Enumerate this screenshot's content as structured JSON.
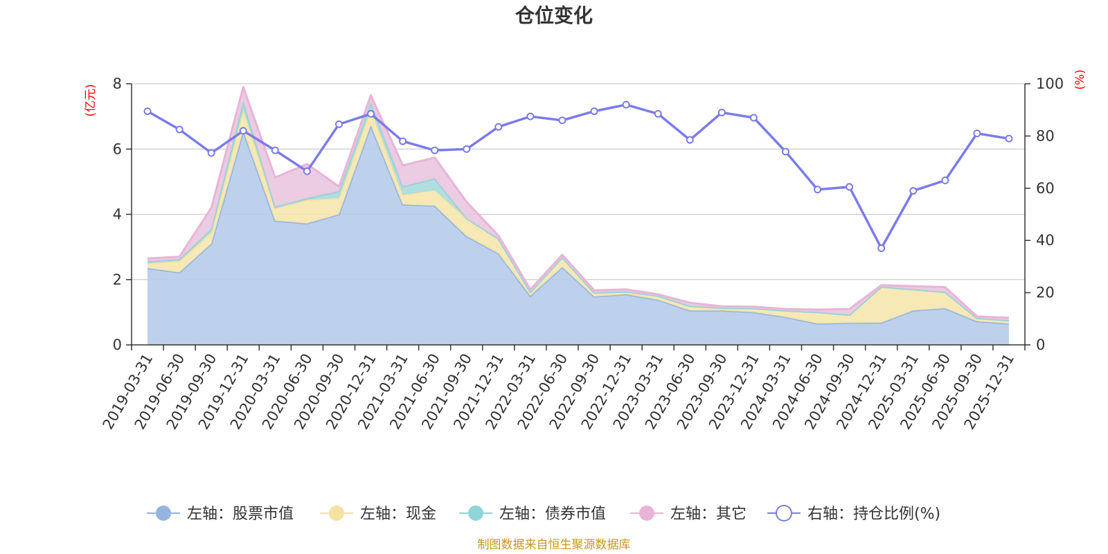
{
  "chart_data": {
    "type": "area",
    "title": "仓位变化",
    "left_axis": {
      "unit": "(亿元)",
      "ylim": [
        0,
        8
      ],
      "ticks": [
        "0",
        "2",
        "4",
        "6",
        "8"
      ]
    },
    "right_axis": {
      "unit": "(%)",
      "ylim": [
        0,
        100
      ],
      "ticks": [
        "0",
        "20",
        "40",
        "60",
        "80",
        "100"
      ]
    },
    "categories": [
      "2019-03-31",
      "2019-06-30",
      "2019-09-30",
      "2019-12-31",
      "2020-03-31",
      "2020-06-30",
      "2020-09-30",
      "2020-12-31",
      "2021-03-31",
      "2021-06-30",
      "2021-09-30",
      "2021-12-31",
      "2022-03-31",
      "2022-06-30",
      "2022-09-30",
      "2022-12-31",
      "2023-03-31",
      "2023-06-30",
      "2023-09-30",
      "2023-12-31",
      "2024-03-31",
      "2024-06-30",
      "2024-09-30",
      "2024-12-31",
      "2025-03-31",
      "2025-06-30",
      "2025-09-30",
      "2025-12-31"
    ],
    "series": [
      {
        "name": "左轴：股票市值",
        "axis": "left",
        "stack": true,
        "color": "#94b4e0",
        "fill": "#b6cbea",
        "values": [
          2.35,
          2.22,
          3.1,
          6.55,
          3.8,
          3.72,
          4.0,
          6.72,
          4.3,
          4.26,
          3.33,
          2.8,
          1.5,
          2.38,
          1.48,
          1.55,
          1.38,
          1.05,
          1.05,
          1.0,
          0.85,
          0.65,
          0.67,
          0.68,
          1.05,
          1.12,
          0.72,
          0.65
        ]
      },
      {
        "name": "左轴：现金",
        "axis": "left",
        "stack": true,
        "color": "#f5e1a0",
        "fill": "#f6e7ae",
        "values": [
          0.15,
          0.35,
          0.35,
          0.65,
          0.38,
          0.72,
          0.5,
          0.5,
          0.3,
          0.48,
          0.55,
          0.45,
          0.12,
          0.3,
          0.12,
          0.08,
          0.12,
          0.14,
          0.08,
          0.12,
          0.2,
          0.35,
          0.25,
          1.1,
          0.65,
          0.5,
          0.1,
          0.1
        ]
      },
      {
        "name": "左轴：债券市值",
        "axis": "left",
        "stack": true,
        "color": "#8fd4d6",
        "fill": "#a8dcde",
        "values": [
          0.05,
          0.05,
          0.1,
          0.25,
          0.05,
          0.05,
          0.2,
          0.2,
          0.25,
          0.35,
          0,
          0,
          0,
          0,
          0,
          0,
          0,
          0,
          0,
          0,
          0,
          0,
          0,
          0,
          0,
          0,
          0,
          0
        ]
      },
      {
        "name": "左轴：其它",
        "axis": "left",
        "stack": true,
        "color": "#e8b4d8",
        "fill": "#e9c6e0",
        "values": [
          0.1,
          0.08,
          0.65,
          0.45,
          0.9,
          1.05,
          0.15,
          0.23,
          0.65,
          0.65,
          0.5,
          0.1,
          0.08,
          0.08,
          0.07,
          0.07,
          0.05,
          0.1,
          0.05,
          0.05,
          0.05,
          0.08,
          0.18,
          0.05,
          0.1,
          0.15,
          0.05,
          0.08
        ]
      },
      {
        "name": "右轴：持仓比例(%)",
        "axis": "right",
        "stack": false,
        "color": "#7b7bea",
        "fill": "none",
        "values": [
          89.5,
          82.5,
          73.5,
          82,
          74.5,
          66.5,
          84.5,
          88.5,
          78,
          74.5,
          75,
          83.5,
          87.5,
          86,
          89.5,
          92,
          88.5,
          78.5,
          89,
          87,
          74,
          59.5,
          60.5,
          37,
          59,
          63,
          81,
          79
        ]
      }
    ]
  },
  "source": "制图数据来自恒生聚源数据库"
}
